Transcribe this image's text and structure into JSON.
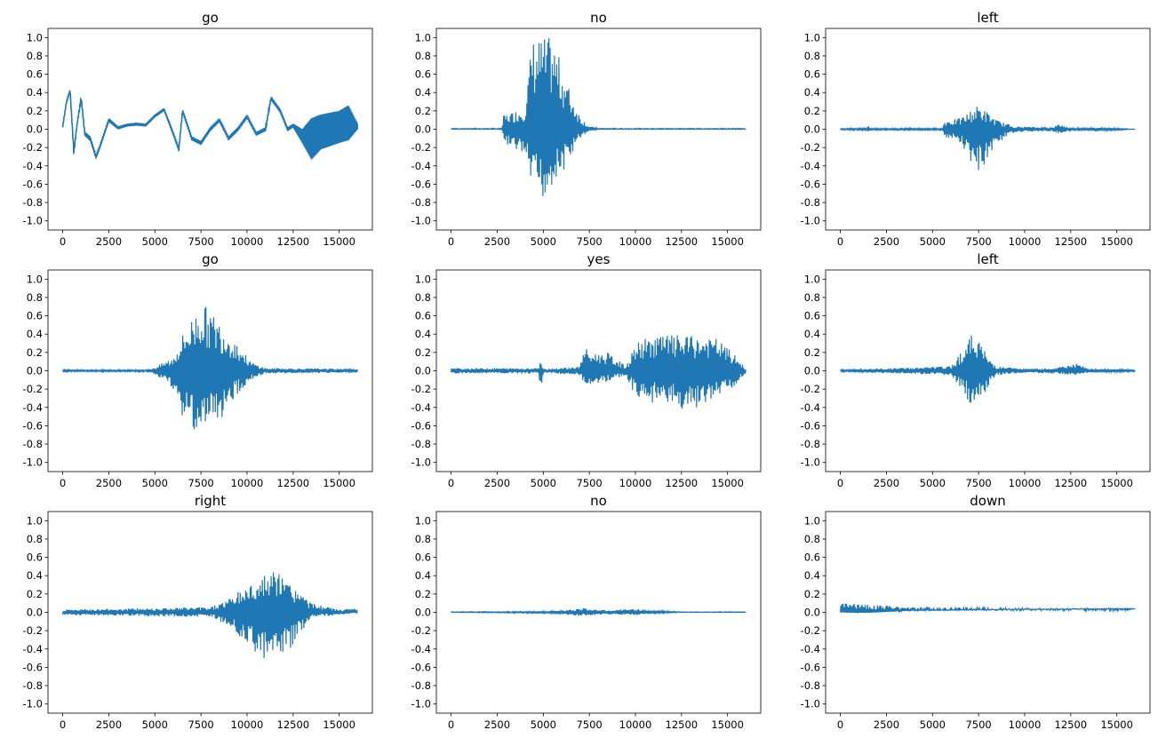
{
  "chart_data": {
    "type": "line",
    "layout": "3x3 grid",
    "line_color": "#1f77b4",
    "xlim": [
      -800,
      16800
    ],
    "ylim": [
      -1.1,
      1.1
    ],
    "xticks": [
      0,
      2500,
      5000,
      7500,
      10000,
      12500,
      15000
    ],
    "yticks": [
      "1.0",
      "0.8",
      "0.6",
      "0.4",
      "0.2",
      "0.0",
      "-0.2",
      "-0.4",
      "-0.6",
      "-0.8",
      "-1.0"
    ],
    "grid": false,
    "envelope_format": "[sample, max amplitude, min amplitude]",
    "plots": [
      {
        "title": "go",
        "smooth": true,
        "envelope": [
          [
            0,
            0.04,
            0.02
          ],
          [
            200,
            0.31,
            0.28
          ],
          [
            400,
            0.44,
            0.4
          ],
          [
            600,
            -0.22,
            -0.27
          ],
          [
            800,
            0.1,
            0.07
          ],
          [
            1000,
            0.36,
            0.32
          ],
          [
            1200,
            -0.03,
            -0.07
          ],
          [
            1500,
            -0.08,
            -0.13
          ],
          [
            1800,
            -0.28,
            -0.32
          ],
          [
            2000,
            -0.18,
            -0.22
          ],
          [
            2500,
            0.12,
            0.08
          ],
          [
            3000,
            0.03,
            0.0
          ],
          [
            3500,
            0.06,
            0.03
          ],
          [
            4000,
            0.07,
            0.04
          ],
          [
            4500,
            0.06,
            0.03
          ],
          [
            5000,
            0.16,
            0.13
          ],
          [
            5500,
            0.23,
            0.2
          ],
          [
            6000,
            -0.03,
            -0.07
          ],
          [
            6300,
            -0.2,
            -0.24
          ],
          [
            6500,
            0.22,
            0.18
          ],
          [
            7000,
            -0.08,
            -0.12
          ],
          [
            7500,
            -0.13,
            -0.17
          ],
          [
            8000,
            0.02,
            -0.02
          ],
          [
            8500,
            0.12,
            0.08
          ],
          [
            9000,
            -0.08,
            -0.12
          ],
          [
            9500,
            0.02,
            -0.02
          ],
          [
            10000,
            0.16,
            0.12
          ],
          [
            10500,
            -0.03,
            -0.07
          ],
          [
            11000,
            0.02,
            -0.02
          ],
          [
            11300,
            0.36,
            0.32
          ],
          [
            11800,
            0.22,
            0.18
          ],
          [
            12200,
            0.02,
            -0.02
          ],
          [
            12500,
            0.06,
            0.02
          ],
          [
            13000,
            0.0,
            -0.15
          ],
          [
            13500,
            0.12,
            -0.33
          ],
          [
            14000,
            0.16,
            -0.22
          ],
          [
            15000,
            0.2,
            -0.15
          ],
          [
            15500,
            0.26,
            -0.12
          ],
          [
            16000,
            0.06,
            0.0
          ]
        ]
      },
      {
        "title": "no",
        "envelope": [
          [
            0,
            0.01,
            0.0
          ],
          [
            2750,
            0.01,
            0.0
          ],
          [
            2850,
            0.15,
            -0.15
          ],
          [
            4000,
            0.25,
            -0.3
          ],
          [
            4400,
            1.0,
            -0.7
          ],
          [
            5000,
            1.0,
            -0.78
          ],
          [
            5500,
            1.0,
            -0.6
          ],
          [
            6000,
            0.7,
            -0.5
          ],
          [
            6500,
            0.4,
            -0.3
          ],
          [
            7000,
            0.15,
            -0.1
          ],
          [
            7500,
            0.03,
            -0.02
          ],
          [
            8000,
            0.01,
            0.0
          ],
          [
            16000,
            0.01,
            0.0
          ]
        ]
      },
      {
        "title": "left",
        "envelope": [
          [
            0,
            0.01,
            -0.01
          ],
          [
            1400,
            0.01,
            -0.01
          ],
          [
            1500,
            0.04,
            -0.02
          ],
          [
            1600,
            0.01,
            -0.01
          ],
          [
            5550,
            0.01,
            -0.01
          ],
          [
            5650,
            0.1,
            -0.1
          ],
          [
            6500,
            0.12,
            -0.15
          ],
          [
            7500,
            0.27,
            -0.5
          ],
          [
            8500,
            0.1,
            -0.15
          ],
          [
            9500,
            0.03,
            -0.03
          ],
          [
            11500,
            0.02,
            -0.02
          ],
          [
            11900,
            0.06,
            -0.05
          ],
          [
            12500,
            0.01,
            -0.01
          ],
          [
            14000,
            0.02,
            -0.02
          ],
          [
            16000,
            0.0,
            0.0
          ]
        ]
      },
      {
        "title": "go",
        "envelope": [
          [
            0,
            0.01,
            -0.01
          ],
          [
            4500,
            0.01,
            -0.01
          ],
          [
            5000,
            0.04,
            -0.04
          ],
          [
            6000,
            0.15,
            -0.2
          ],
          [
            6500,
            0.4,
            -0.5
          ],
          [
            7500,
            0.76,
            -0.72
          ],
          [
            8500,
            0.55,
            -0.55
          ],
          [
            9500,
            0.3,
            -0.25
          ],
          [
            10200,
            0.1,
            -0.1
          ],
          [
            11000,
            0.03,
            -0.03
          ],
          [
            16000,
            0.02,
            -0.02
          ]
        ]
      },
      {
        "title": "yes",
        "envelope": [
          [
            0,
            0.03,
            -0.03
          ],
          [
            4750,
            0.03,
            -0.03
          ],
          [
            4850,
            0.17,
            -0.23
          ],
          [
            5000,
            0.02,
            -0.02
          ],
          [
            7000,
            0.05,
            -0.05
          ],
          [
            7200,
            0.28,
            -0.15
          ],
          [
            7500,
            0.2,
            -0.15
          ],
          [
            8500,
            0.2,
            -0.12
          ],
          [
            9500,
            0.05,
            -0.05
          ],
          [
            10000,
            0.3,
            -0.3
          ],
          [
            11000,
            0.4,
            -0.35
          ],
          [
            13000,
            0.38,
            -0.44
          ],
          [
            14500,
            0.35,
            -0.3
          ],
          [
            15500,
            0.15,
            -0.15
          ],
          [
            16000,
            0.02,
            -0.02
          ]
        ]
      },
      {
        "title": "left",
        "envelope": [
          [
            0,
            0.01,
            -0.01
          ],
          [
            6000,
            0.05,
            -0.05
          ],
          [
            6500,
            0.2,
            -0.2
          ],
          [
            7300,
            0.45,
            -0.43
          ],
          [
            8000,
            0.15,
            -0.2
          ],
          [
            8500,
            0.05,
            -0.05
          ],
          [
            10000,
            0.02,
            -0.02
          ],
          [
            11500,
            0.03,
            -0.03
          ],
          [
            12800,
            0.08,
            -0.05
          ],
          [
            13500,
            0.02,
            -0.02
          ],
          [
            16000,
            0.01,
            -0.01
          ]
        ]
      },
      {
        "title": "right",
        "envelope": [
          [
            0,
            0.03,
            -0.03
          ],
          [
            8000,
            0.06,
            -0.05
          ],
          [
            9000,
            0.15,
            -0.15
          ],
          [
            10000,
            0.3,
            -0.35
          ],
          [
            11500,
            0.46,
            -0.63
          ],
          [
            12500,
            0.3,
            -0.35
          ],
          [
            13500,
            0.1,
            -0.05
          ],
          [
            15000,
            0.03,
            -0.03
          ],
          [
            16000,
            0.04,
            0.0
          ]
        ]
      },
      {
        "title": "no",
        "envelope": [
          [
            0,
            0.006,
            0.0
          ],
          [
            5500,
            0.01,
            -0.01
          ],
          [
            7000,
            0.05,
            -0.04
          ],
          [
            8500,
            0.02,
            -0.02
          ],
          [
            10000,
            0.04,
            -0.03
          ],
          [
            11000,
            0.02,
            -0.01
          ],
          [
            12500,
            0.006,
            0.0
          ],
          [
            16000,
            0.006,
            0.0
          ]
        ]
      },
      {
        "title": "down",
        "envelope": [
          [
            0,
            0.1,
            0.0
          ],
          [
            1000,
            0.1,
            -0.01
          ],
          [
            2000,
            0.08,
            0.0
          ],
          [
            4000,
            0.06,
            0.02
          ],
          [
            8000,
            0.05,
            0.03
          ],
          [
            16000,
            0.045,
            0.04
          ]
        ]
      }
    ]
  }
}
